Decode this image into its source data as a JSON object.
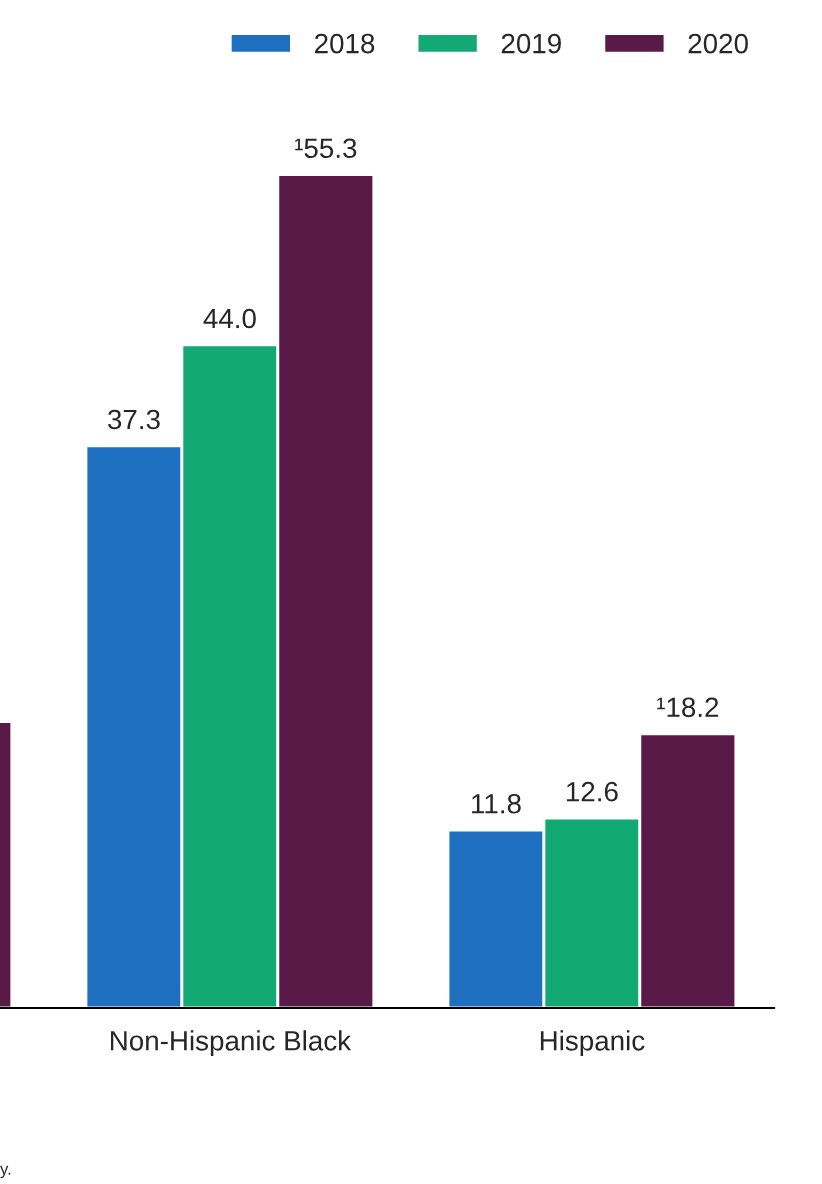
{
  "chart_data": {
    "type": "bar",
    "categories": [
      null,
      "Non-Hispanic Black",
      "Hispanic"
    ],
    "series": [
      {
        "name": "2018",
        "color": "#1f6fc1",
        "values": [
          null,
          37.3,
          11.8
        ],
        "value_labels": [
          null,
          "37.3",
          "11.8"
        ]
      },
      {
        "name": "2019",
        "color": "#13a975",
        "values": [
          null,
          44.0,
          12.6
        ],
        "value_labels": [
          null,
          "44.0",
          "12.6"
        ]
      },
      {
        "name": "2020",
        "color": "#5a1a48",
        "values": [
          19.0,
          55.3,
          18.2
        ],
        "value_labels": [
          null,
          "¹55.3",
          "¹18.2"
        ]
      }
    ],
    "legend": "top right",
    "grid": false,
    "annotations": [
      "y."
    ]
  }
}
